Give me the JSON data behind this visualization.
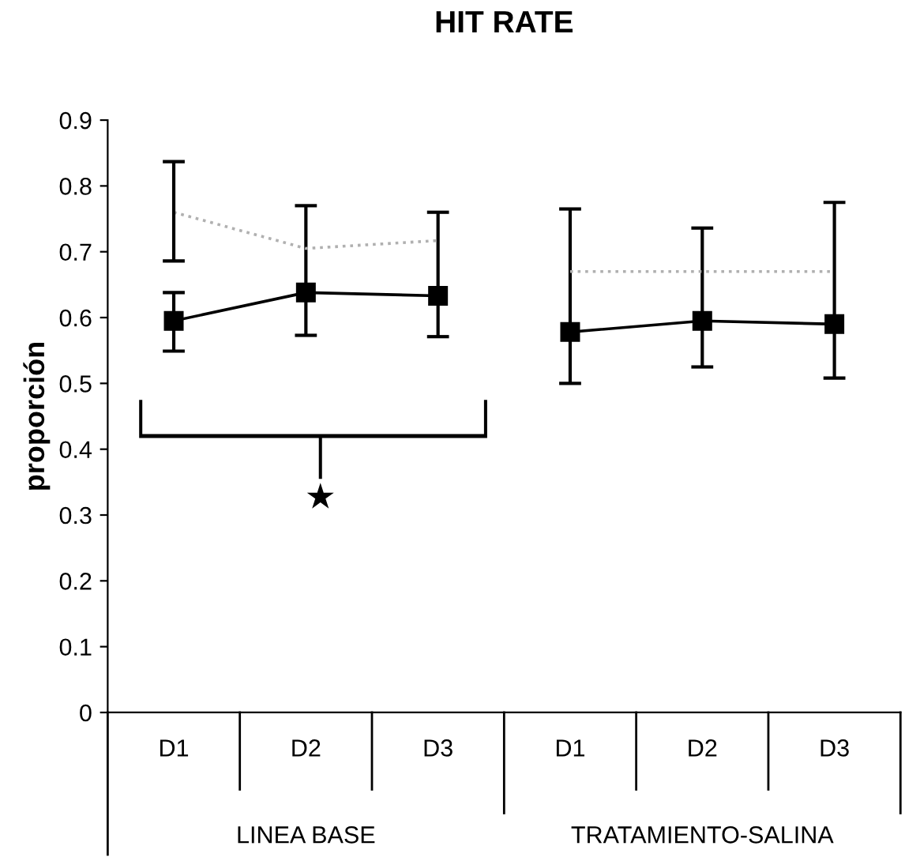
{
  "chart_data": {
    "type": "line",
    "title": "HIT RATE",
    "ylabel": "proporción",
    "categories": [
      "D1",
      "D2",
      "D3",
      "D1",
      "D2",
      "D3"
    ],
    "series": [
      {
        "color": "#000000",
        "marker": "square",
        "line_style": "solid",
        "values": [
          0.595,
          0.638,
          0.633,
          0.578,
          0.595,
          0.59
        ],
        "errors": [
          [
            0.549,
            0.638
          ],
          [
            0.573,
            0.77
          ],
          [
            0.571,
            0.76
          ],
          [
            0.5,
            0.765
          ],
          [
            0.525,
            0.736
          ],
          [
            0.508,
            0.775
          ]
        ]
      },
      {
        "color": "#b0b0b0",
        "marker": "none",
        "line_style": "dotted",
        "values": [
          0.76,
          0.705,
          0.717,
          0.67,
          0.67,
          0.67
        ],
        "errors": [
          [
            0.686,
            0.837
          ],
          null,
          null,
          null,
          null,
          null
        ]
      }
    ],
    "ylim": [
      0,
      0.9
    ],
    "yticks": [
      0,
      0.1,
      0.2,
      0.3,
      0.4,
      0.5,
      0.6,
      0.7,
      0.8,
      0.9
    ],
    "grid": false,
    "legend": false,
    "annotations": [
      "LINEA BASE",
      "TRATAMIENTO-SALINA",
      "★"
    ]
  }
}
